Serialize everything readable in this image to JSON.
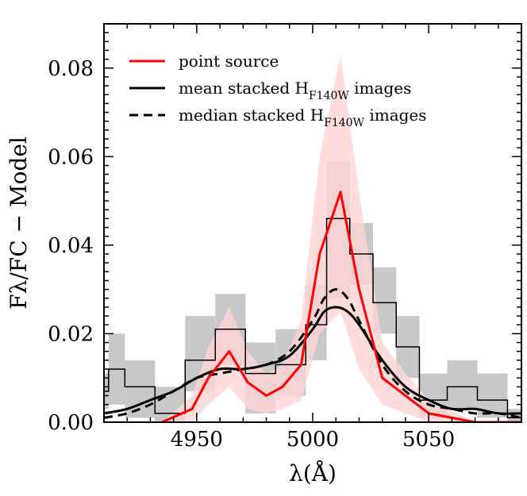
{
  "chart_data": {
    "type": "line",
    "title": "",
    "xlabel": "λ(Å)",
    "ylabel": "Fλ/FC − Model",
    "xlim": [
      4910,
      5090
    ],
    "ylim": [
      0.0,
      0.09
    ],
    "x_ticks": [
      4950,
      5000,
      5050
    ],
    "x_tick_labels": [
      "4950",
      "5000",
      "5050"
    ],
    "y_ticks": [
      0.0,
      0.02,
      0.04,
      0.06,
      0.08
    ],
    "y_tick_labels": [
      "0.00",
      "0.02",
      "0.04",
      "0.06",
      "0.08"
    ],
    "legend": {
      "placement": "top-left",
      "entries": [
        {
          "key": "point",
          "label": "point source",
          "style": "solid",
          "color": "#ff0000"
        },
        {
          "key": "mean",
          "label_main": "mean stacked H",
          "label_sub": "F140W",
          "label_tail": " images",
          "style": "solid",
          "color": "#000000"
        },
        {
          "key": "median",
          "label_main": "median stacked H",
          "label_sub": "F140W",
          "label_tail": " images",
          "style": "dashed",
          "color": "#000000"
        }
      ]
    },
    "series": [
      {
        "name": "point source",
        "kind": "line",
        "color": "#ff0000",
        "x": [
          4935,
          4948,
          4955,
          4964,
          4972,
          4980,
          4987,
          4995,
          5003,
          5012,
          5020,
          5030,
          5040,
          5050,
          5070,
          5090
        ],
        "y": [
          0.0,
          0.003,
          0.01,
          0.016,
          0.009,
          0.006,
          0.008,
          0.013,
          0.038,
          0.052,
          0.03,
          0.01,
          0.006,
          0.002,
          0.0,
          0.0
        ],
        "band_upper": [
          0.0,
          0.006,
          0.017,
          0.026,
          0.016,
          0.011,
          0.013,
          0.023,
          0.06,
          0.083,
          0.052,
          0.018,
          0.011,
          0.005,
          0.0,
          0.0
        ],
        "band_lower": [
          0.0,
          0.0,
          0.004,
          0.008,
          0.003,
          0.002,
          0.003,
          0.005,
          0.02,
          0.025,
          0.012,
          0.004,
          0.002,
          0.0,
          0.0,
          0.0
        ],
        "band_color": "#ffd5d5"
      },
      {
        "name": "mean stacked HF140W images",
        "kind": "line",
        "color": "#000000",
        "x": [
          4910,
          4920,
          4930,
          4940,
          4950,
          4960,
          4970,
          4980,
          4990,
          5000,
          5005,
          5010,
          5015,
          5020,
          5030,
          5040,
          5050,
          5060,
          5070,
          5080,
          5090
        ],
        "y": [
          0.002,
          0.003,
          0.005,
          0.007,
          0.01,
          0.012,
          0.012,
          0.013,
          0.015,
          0.021,
          0.025,
          0.026,
          0.025,
          0.022,
          0.014,
          0.008,
          0.005,
          0.003,
          0.003,
          0.002,
          0.002
        ]
      },
      {
        "name": "median stacked HF140W images",
        "kind": "dashed",
        "color": "#000000",
        "x": [
          4910,
          4920,
          4930,
          4940,
          4950,
          4960,
          4970,
          4980,
          4990,
          5000,
          5005,
          5010,
          5015,
          5020,
          5030,
          5040,
          5050,
          5060,
          5070,
          5080,
          5090
        ],
        "y": [
          0.001,
          0.002,
          0.004,
          0.007,
          0.01,
          0.011,
          0.012,
          0.013,
          0.016,
          0.023,
          0.028,
          0.03,
          0.028,
          0.023,
          0.013,
          0.007,
          0.004,
          0.003,
          0.002,
          0.002,
          0.001
        ]
      },
      {
        "name": "stacked spectrum histogram",
        "kind": "step",
        "color": "#000000",
        "bin_edges": [
          4910,
          4912,
          4919,
          4932,
          4945,
          4958,
          4971,
          4984,
          4997,
          5006,
          5016,
          5026,
          5036,
          5046,
          5058,
          5071,
          5084,
          5090
        ],
        "values": [
          0.007,
          0.012,
          0.008,
          0.002,
          0.014,
          0.021,
          0.011,
          0.013,
          0.022,
          0.046,
          0.038,
          0.027,
          0.017,
          0.005,
          0.008,
          0.005,
          0.001
        ],
        "err_lower": [
          0.003,
          0.004,
          0.001,
          0.0,
          0.007,
          0.013,
          0.002,
          0.006,
          0.014,
          0.028,
          0.031,
          0.02,
          0.01,
          0.001,
          0.003,
          0.001,
          0.0
        ],
        "err_upper": [
          0.011,
          0.02,
          0.014,
          0.008,
          0.024,
          0.029,
          0.018,
          0.021,
          0.031,
          0.059,
          0.045,
          0.035,
          0.024,
          0.011,
          0.014,
          0.011,
          0.003
        ],
        "err_color": "#c8c8c8"
      }
    ]
  }
}
